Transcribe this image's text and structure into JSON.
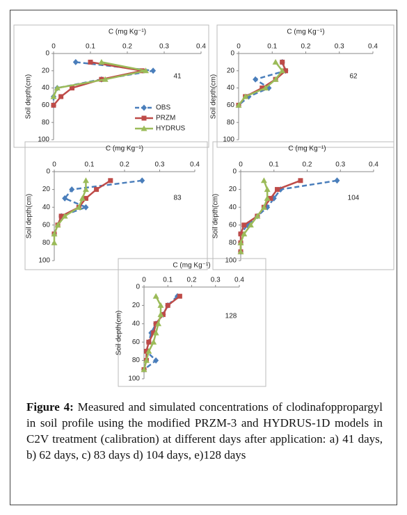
{
  "chart_data": [
    {
      "type": "line",
      "title": "C (mg Kg⁻¹)",
      "ylabel": "Soil depth(cm)",
      "annotation": "41",
      "xlim": [
        0,
        0.4
      ],
      "xticks": [
        0,
        0.1,
        0.2,
        0.3,
        0.4
      ],
      "ylim": [
        0,
        100
      ],
      "yticks": [
        0,
        20,
        40,
        60,
        80,
        100
      ],
      "legend": "lower right",
      "series": [
        {
          "name": "OBS",
          "color": "#4a7ebb",
          "dashed": true,
          "marker": "diamond",
          "x": [
            0.06,
            0.27,
            0.13,
            0.01,
            0,
            0
          ],
          "y": [
            10,
            20,
            30,
            40,
            50,
            60
          ]
        },
        {
          "name": "PRZM",
          "color": "#be4b48",
          "dashed": false,
          "marker": "square",
          "x": [
            0.1,
            0.24,
            0.13,
            0.05,
            0.02,
            0
          ],
          "y": [
            10,
            20,
            30,
            40,
            50,
            60
          ]
        },
        {
          "name": "HYDRUS",
          "color": "#9bbb59",
          "dashed": false,
          "marker": "triangle",
          "x": [
            0.13,
            0.25,
            0.14,
            0.01,
            0
          ],
          "y": [
            10,
            20,
            30,
            40,
            50
          ]
        }
      ]
    },
    {
      "type": "line",
      "title": "C (mg Kg⁻¹)",
      "ylabel": "Soil depth(cm)",
      "annotation": "62",
      "xlim": [
        0,
        0.4
      ],
      "xticks": [
        0,
        0.1,
        0.2,
        0.3,
        0.4
      ],
      "ylim": [
        0,
        100
      ],
      "yticks": [
        0,
        20,
        40,
        60,
        80,
        100
      ],
      "series": [
        {
          "color": "#4a7ebb",
          "dashed": true,
          "marker": "diamond",
          "x": [
            0.13,
            0.14,
            0.05,
            0.09,
            0.03,
            0
          ],
          "y": [
            10,
            20,
            30,
            40,
            50,
            60
          ]
        },
        {
          "color": "#be4b48",
          "dashed": false,
          "marker": "square",
          "x": [
            0.13,
            0.14,
            0.11,
            0.07,
            0.02,
            0
          ],
          "y": [
            10,
            20,
            30,
            40,
            50,
            60
          ]
        },
        {
          "color": "#9bbb59",
          "dashed": false,
          "marker": "triangle",
          "x": [
            0.11,
            0.13,
            0.11,
            0.08,
            0.02,
            0
          ],
          "y": [
            10,
            20,
            30,
            40,
            50,
            60
          ]
        }
      ]
    },
    {
      "type": "line",
      "title": "C (mg Kg⁻¹)",
      "ylabel": "Soil depth(cm)",
      "annotation": "83",
      "xlim": [
        0,
        0.4
      ],
      "xticks": [
        0,
        0.1,
        0.2,
        0.3,
        0.4
      ],
      "ylim": [
        0,
        100
      ],
      "yticks": [
        0,
        20,
        40,
        60,
        80,
        100
      ],
      "series": [
        {
          "color": "#4a7ebb",
          "dashed": true,
          "marker": "diamond",
          "x": [
            0.25,
            0.05,
            0.03,
            0.09,
            0.02,
            0
          ],
          "y": [
            10,
            20,
            30,
            40,
            50,
            70
          ]
        },
        {
          "color": "#be4b48",
          "dashed": false,
          "marker": "square",
          "x": [
            0.16,
            0.12,
            0.09,
            0.07,
            0.02,
            0.01,
            0
          ],
          "y": [
            10,
            20,
            30,
            40,
            50,
            60,
            70
          ]
        },
        {
          "color": "#9bbb59",
          "dashed": false,
          "marker": "triangle",
          "x": [
            0.09,
            0.09,
            0.08,
            0.07,
            0.03,
            0.01,
            0,
            0
          ],
          "y": [
            10,
            20,
            30,
            40,
            50,
            60,
            70,
            80
          ]
        }
      ]
    },
    {
      "type": "line",
      "title": "C (mg Kg⁻¹)",
      "ylabel": "Soil depth(cm)",
      "annotation": "104",
      "xlim": [
        0,
        0.4
      ],
      "xticks": [
        0,
        0.1,
        0.2,
        0.3,
        0.4
      ],
      "ylim": [
        0,
        100
      ],
      "yticks": [
        0,
        20,
        40,
        60,
        80,
        100
      ],
      "series": [
        {
          "color": "#4a7ebb",
          "dashed": true,
          "marker": "diamond",
          "x": [
            0.29,
            0.12,
            0.1,
            0.08,
            0.05,
            0.02,
            0,
            0,
            0
          ],
          "y": [
            10,
            20,
            30,
            40,
            50,
            60,
            70,
            80,
            90
          ]
        },
        {
          "color": "#be4b48",
          "dashed": false,
          "marker": "square",
          "x": [
            0.18,
            0.11,
            0.09,
            0.07,
            0.05,
            0.01,
            0,
            0,
            0
          ],
          "y": [
            10,
            20,
            30,
            40,
            50,
            60,
            70,
            80,
            90
          ]
        },
        {
          "color": "#9bbb59",
          "dashed": false,
          "marker": "triangle",
          "x": [
            0.07,
            0.08,
            0.08,
            0.07,
            0.05,
            0.03,
            0.01,
            0,
            0
          ],
          "y": [
            10,
            20,
            30,
            40,
            50,
            60,
            70,
            80,
            90
          ]
        }
      ]
    },
    {
      "type": "line",
      "title": "C (mg Kg⁻¹)",
      "ylabel": "Soil depth(cm)",
      "annotation": "128",
      "xlim": [
        0,
        0.4
      ],
      "xticks": [
        0,
        0.1,
        0.2,
        0.3,
        0.4
      ],
      "ylim": [
        0,
        100
      ],
      "yticks": [
        0,
        20,
        40,
        60,
        80,
        100
      ],
      "series": [
        {
          "color": "#4a7ebb",
          "dashed": true,
          "marker": "diamond",
          "x": [
            0.14,
            0.1,
            0.08,
            0.05,
            0.03,
            0.02,
            0.01,
            0.05,
            0
          ],
          "y": [
            10,
            20,
            30,
            40,
            50,
            60,
            70,
            80,
            90
          ]
        },
        {
          "color": "#be4b48",
          "dashed": false,
          "marker": "square",
          "x": [
            0.15,
            0.1,
            0.08,
            0.05,
            0.04,
            0.02,
            0.01,
            0.01,
            0
          ],
          "y": [
            10,
            20,
            30,
            40,
            50,
            60,
            70,
            80,
            90
          ]
        },
        {
          "color": "#9bbb59",
          "dashed": false,
          "marker": "triangle",
          "x": [
            0.05,
            0.07,
            0.07,
            0.06,
            0.05,
            0.04,
            0.02,
            0.01,
            0
          ],
          "y": [
            10,
            20,
            30,
            40,
            50,
            60,
            70,
            80,
            90
          ]
        }
      ]
    }
  ],
  "caption": {
    "label": "Figure 4:",
    "text": "Measured and simulated concentrations of clodinafoppropargyl in soil profile using the modified PRZM-3 and HYDRUS-1D models in C2V treatment (calibration) at different days after application: a) 41 days, b) 62 days, c) 83 days d) 104 days, e)128 days"
  }
}
